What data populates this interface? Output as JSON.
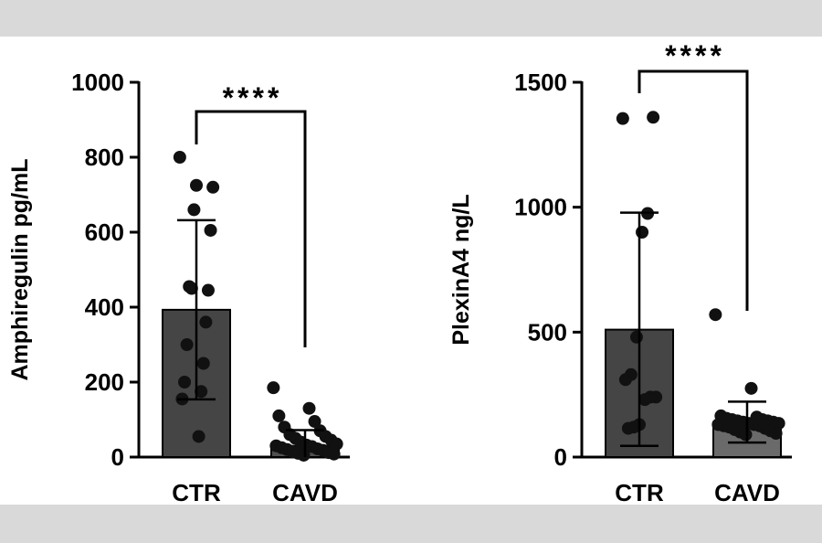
{
  "chart_data": [
    {
      "type": "bar",
      "ylabel": "Amphiregulin pg/mL",
      "categories": [
        "CTR",
        "CAVD"
      ],
      "ylim": [
        0,
        1000
      ],
      "yticks": [
        0,
        200,
        400,
        600,
        800,
        1000
      ],
      "means": [
        393,
        30
      ],
      "sd_upper": [
        632,
        72
      ],
      "sd_lower": [
        154,
        0
      ],
      "bar_colors": [
        "#454545",
        "#505050"
      ],
      "points": [
        [
          800,
          725,
          720,
          660,
          605,
          450,
          445,
          455,
          360,
          300,
          250,
          200,
          175,
          155,
          55
        ],
        [
          185,
          130,
          110,
          95,
          80,
          70,
          60,
          55,
          50,
          45,
          40,
          35,
          32,
          30,
          28,
          25,
          22,
          20,
          18,
          15,
          12,
          10,
          8,
          5
        ]
      ],
      "significance": "****"
    },
    {
      "type": "bar",
      "ylabel": "PlexinA4 ng/L",
      "categories": [
        "CTR",
        "CAVD"
      ],
      "ylim": [
        0,
        1500
      ],
      "yticks": [
        0,
        500,
        1000,
        1500
      ],
      "means": [
        510,
        140
      ],
      "sd_upper": [
        978,
        222
      ],
      "sd_lower": [
        45,
        58
      ],
      "bar_colors": [
        "#454545",
        "#6a6a6a"
      ],
      "points": [
        [
          1355,
          1360,
          975,
          900,
          480,
          330,
          310,
          240,
          240,
          230,
          130,
          120,
          115
        ],
        [
          570,
          275,
          165,
          160,
          155,
          150,
          150,
          145,
          145,
          140,
          140,
          135,
          135,
          130,
          130,
          125,
          125,
          120,
          115,
          110,
          105,
          100,
          95,
          90
        ]
      ],
      "significance": "****"
    }
  ]
}
